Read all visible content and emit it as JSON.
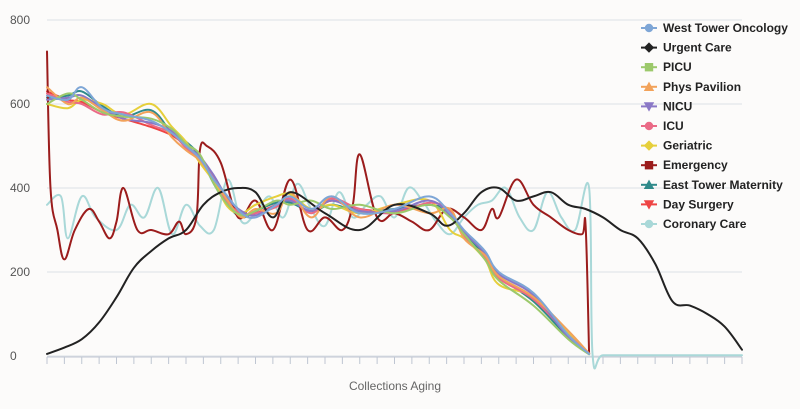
{
  "chart_data": {
    "type": "line",
    "title": "",
    "xlabel": "Collections Aging",
    "ylabel": "",
    "ylim": [
      0,
      800
    ],
    "x_range": [
      0,
      200
    ],
    "yticks": [
      0,
      200,
      400,
      600,
      800
    ],
    "x_tick_count": 40,
    "grid": {
      "horizontal": true,
      "vertical": false
    },
    "legend": {
      "position": "right",
      "marker": "line-with-marker"
    },
    "series": [
      {
        "name": "West Tower Oncology",
        "color": "#7ea6d6",
        "marker": "circle",
        "x": [
          0,
          6,
          10,
          16,
          22,
          30,
          36,
          40,
          44,
          48,
          52,
          56,
          60,
          66,
          70,
          76,
          82,
          90,
          100,
          110,
          116,
          120,
          126,
          130,
          140,
          150,
          156
        ],
        "y": [
          620,
          610,
          640,
          590,
          575,
          560,
          530,
          500,
          470,
          420,
          380,
          340,
          330,
          360,
          380,
          350,
          380,
          340,
          350,
          380,
          340,
          300,
          250,
          200,
          150,
          50,
          5
        ]
      },
      {
        "name": "Urgent Care",
        "color": "#222222",
        "marker": "diamond",
        "x": [
          0,
          5,
          10,
          15,
          20,
          25,
          30,
          35,
          40,
          45,
          50,
          55,
          60,
          65,
          70,
          80,
          90,
          100,
          110,
          115,
          120,
          125,
          130,
          135,
          140,
          145,
          150,
          155,
          160,
          165,
          170,
          175,
          180,
          185,
          190,
          195,
          200
        ],
        "y": [
          5,
          20,
          40,
          80,
          140,
          210,
          250,
          280,
          300,
          360,
          390,
          400,
          390,
          330,
          390,
          340,
          300,
          360,
          340,
          310,
          340,
          390,
          400,
          370,
          380,
          390,
          360,
          350,
          330,
          300,
          280,
          220,
          130,
          120,
          100,
          70,
          15
        ]
      },
      {
        "name": "PICU",
        "color": "#9cc96b",
        "marker": "square",
        "x": [
          0,
          6,
          10,
          16,
          22,
          30,
          36,
          40,
          44,
          48,
          52,
          56,
          60,
          66,
          70,
          76,
          82,
          90,
          100,
          110,
          116,
          120,
          126,
          130,
          140,
          150,
          156
        ],
        "y": [
          600,
          625,
          610,
          580,
          570,
          565,
          540,
          505,
          480,
          410,
          360,
          335,
          345,
          370,
          360,
          370,
          350,
          360,
          340,
          360,
          330,
          290,
          230,
          180,
          120,
          40,
          4
        ]
      },
      {
        "name": "Phys Pavilion",
        "color": "#f2a25a",
        "marker": "triangle-up",
        "x": [
          0,
          6,
          10,
          16,
          22,
          30,
          36,
          40,
          44,
          48,
          52,
          56,
          60,
          66,
          70,
          76,
          82,
          90,
          100,
          110,
          116,
          120,
          126,
          130,
          140,
          150,
          156
        ],
        "y": [
          640,
          600,
          615,
          585,
          560,
          580,
          520,
          490,
          465,
          420,
          370,
          330,
          350,
          340,
          390,
          330,
          380,
          330,
          360,
          340,
          350,
          280,
          240,
          190,
          140,
          60,
          6
        ]
      },
      {
        "name": "NICU",
        "color": "#8a78c6",
        "marker": "triangle-down",
        "x": [
          0,
          6,
          10,
          16,
          22,
          30,
          36,
          40,
          44,
          48,
          52,
          56,
          60,
          66,
          70,
          76,
          82,
          90,
          100,
          110,
          116,
          120,
          126,
          130,
          140,
          150,
          156
        ],
        "y": [
          610,
          615,
          620,
          590,
          565,
          555,
          535,
          500,
          475,
          430,
          375,
          345,
          335,
          360,
          370,
          345,
          370,
          345,
          345,
          370,
          335,
          295,
          245,
          195,
          145,
          45,
          5
        ]
      },
      {
        "name": "ICU",
        "color": "#ea6a86",
        "marker": "circle",
        "x": [
          0,
          6,
          10,
          16,
          22,
          30,
          36,
          40,
          44,
          48,
          52,
          56,
          60,
          66,
          70,
          76,
          82,
          90,
          100,
          110,
          116,
          120,
          126,
          130,
          140,
          150,
          156
        ],
        "y": [
          625,
          605,
          600,
          575,
          580,
          550,
          530,
          495,
          470,
          425,
          365,
          340,
          340,
          355,
          375,
          340,
          375,
          350,
          340,
          365,
          345,
          285,
          235,
          185,
          135,
          50,
          5
        ]
      },
      {
        "name": "Geriatric",
        "color": "#e6cf3b",
        "marker": "diamond",
        "x": [
          0,
          6,
          10,
          16,
          22,
          30,
          36,
          40,
          44,
          48,
          52,
          56,
          60,
          66,
          70,
          76,
          82,
          90,
          100,
          110,
          116,
          120,
          126,
          130,
          140,
          150,
          156
        ],
        "y": [
          600,
          590,
          610,
          600,
          575,
          600,
          545,
          510,
          460,
          415,
          355,
          340,
          360,
          380,
          385,
          350,
          360,
          340,
          360,
          370,
          300,
          280,
          230,
          170,
          140,
          55,
          6
        ]
      },
      {
        "name": "Emergency",
        "color": "#9b1c1c",
        "marker": "square",
        "x": [
          0,
          1,
          3,
          5,
          8,
          12,
          15,
          18,
          20,
          22,
          26,
          30,
          35,
          38,
          40,
          43,
          44,
          46,
          50,
          55,
          60,
          65,
          70,
          75,
          80,
          85,
          88,
          90,
          95,
          100,
          105,
          110,
          115,
          120,
          125,
          128,
          130,
          135,
          140,
          145,
          150,
          154,
          155,
          156
        ],
        "y": [
          725,
          400,
          300,
          230,
          300,
          350,
          320,
          280,
          320,
          400,
          300,
          300,
          290,
          320,
          290,
          330,
          490,
          500,
          460,
          330,
          370,
          300,
          420,
          300,
          330,
          300,
          360,
          480,
          330,
          340,
          320,
          300,
          350,
          330,
          300,
          350,
          330,
          420,
          360,
          330,
          300,
          290,
          310,
          5
        ]
      },
      {
        "name": "East Tower Maternity",
        "color": "#2f8a8a",
        "marker": "triangle-up",
        "x": [
          0,
          6,
          10,
          16,
          22,
          30,
          36,
          40,
          44,
          48,
          52,
          56,
          60,
          66,
          70,
          76,
          82,
          90,
          100,
          110,
          116,
          120,
          126,
          130,
          140,
          150,
          156
        ],
        "y": [
          615,
          620,
          630,
          595,
          570,
          585,
          530,
          510,
          475,
          410,
          360,
          330,
          345,
          365,
          365,
          345,
          360,
          345,
          350,
          360,
          340,
          290,
          240,
          190,
          130,
          45,
          5
        ]
      },
      {
        "name": "Day Surgery",
        "color": "#ee4444",
        "marker": "triangle-down",
        "x": [
          0,
          6,
          10,
          16,
          22,
          30,
          36,
          40,
          44,
          48,
          52,
          56,
          60,
          66,
          70,
          76,
          82,
          90,
          100,
          110,
          116,
          120,
          126,
          130,
          140,
          150,
          156
        ],
        "y": [
          630,
          610,
          605,
          580,
          565,
          545,
          525,
          500,
          465,
          425,
          370,
          340,
          340,
          360,
          370,
          345,
          370,
          350,
          345,
          360,
          340,
          285,
          240,
          185,
          140,
          50,
          5
        ]
      },
      {
        "name": "Coronary Care",
        "color": "#a9d8d8",
        "marker": "circle",
        "x": [
          0,
          4,
          6,
          10,
          14,
          20,
          24,
          28,
          32,
          36,
          40,
          44,
          48,
          52,
          56,
          60,
          64,
          68,
          72,
          76,
          80,
          84,
          88,
          92,
          96,
          100,
          104,
          108,
          112,
          116,
          120,
          124,
          128,
          132,
          136,
          140,
          144,
          148,
          152,
          156,
          157,
          160,
          170,
          180,
          190,
          200
        ],
        "y": [
          360,
          380,
          280,
          380,
          330,
          300,
          360,
          330,
          400,
          290,
          360,
          310,
          300,
          420,
          320,
          340,
          380,
          330,
          410,
          350,
          310,
          390,
          330,
          360,
          380,
          330,
          400,
          370,
          320,
          290,
          330,
          360,
          370,
          400,
          330,
          300,
          390,
          330,
          300,
          400,
          2,
          2,
          2,
          2,
          2,
          2
        ]
      }
    ]
  }
}
